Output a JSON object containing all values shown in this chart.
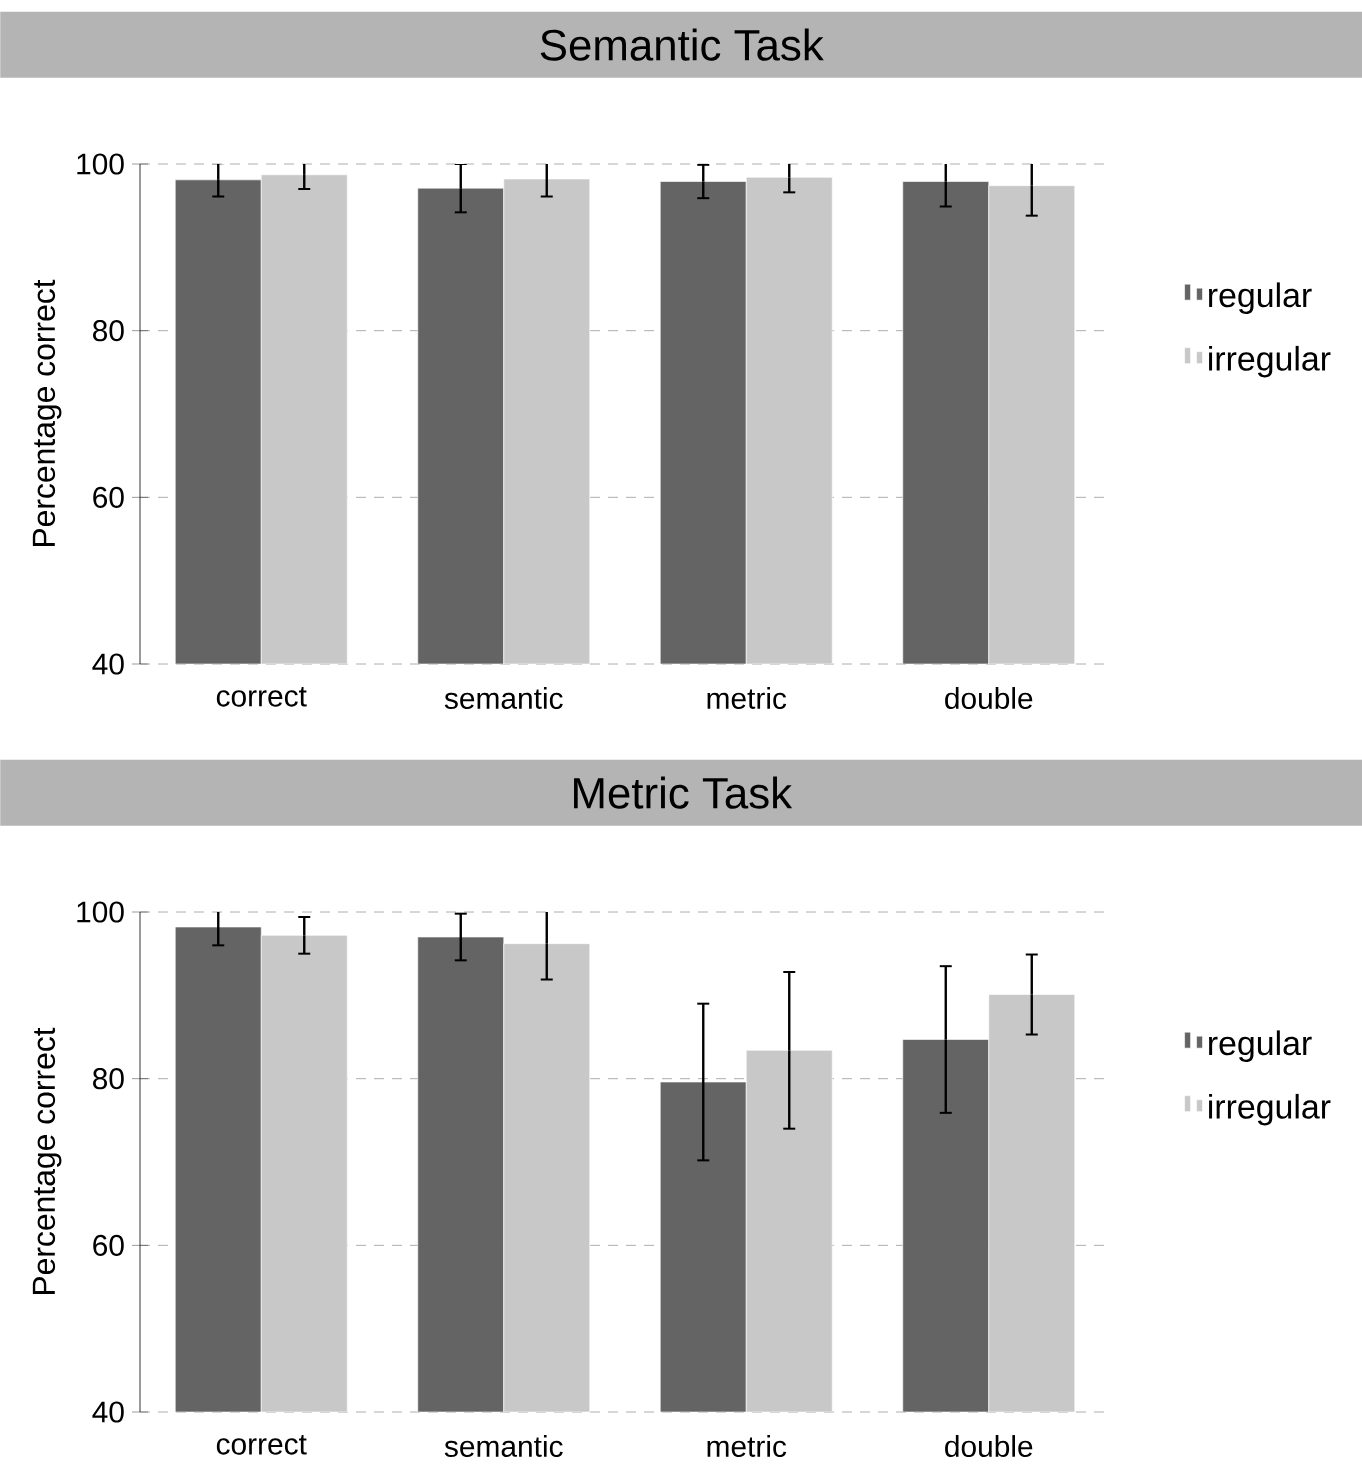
{
  "chart_data": [
    {
      "type": "bar",
      "title": "Semantic Task",
      "ylabel": "Percentage correct",
      "categories": [
        "correct",
        "semantic",
        "metric",
        "double"
      ],
      "series": [
        {
          "name": "regular",
          "color": "#646464",
          "values": [
            98.1,
            97.1,
            97.9,
            97.9
          ],
          "errors": [
            2,
            2.9,
            2,
            3
          ]
        },
        {
          "name": "irregular",
          "color": "#c8c8c8",
          "values": [
            98.7,
            98.2,
            98.4,
            97.4
          ],
          "errors": [
            1.7,
            2.1,
            1.8,
            3.6
          ]
        }
      ],
      "ylim": [
        40,
        100
      ],
      "yticks": [
        40,
        60,
        80,
        100
      ],
      "grid": "y",
      "legend": "right"
    },
    {
      "type": "bar",
      "title": "Metric Task",
      "ylabel": "Percentage correct",
      "categories": [
        "correct",
        "semantic",
        "metric",
        "double"
      ],
      "series": [
        {
          "name": "regular",
          "color": "#646464",
          "values": [
            98.2,
            97.0,
            79.6,
            84.7
          ],
          "errors": [
            2.2,
            2.8,
            9.4,
            8.8
          ]
        },
        {
          "name": "irregular",
          "color": "#c8c8c8",
          "values": [
            97.2,
            96.2,
            83.4,
            90.1
          ],
          "errors": [
            2.2,
            4.3,
            9.4,
            4.8
          ]
        }
      ],
      "ylim": [
        40,
        100
      ],
      "yticks": [
        40,
        60,
        80,
        100
      ],
      "grid": "y",
      "legend": "right"
    }
  ]
}
